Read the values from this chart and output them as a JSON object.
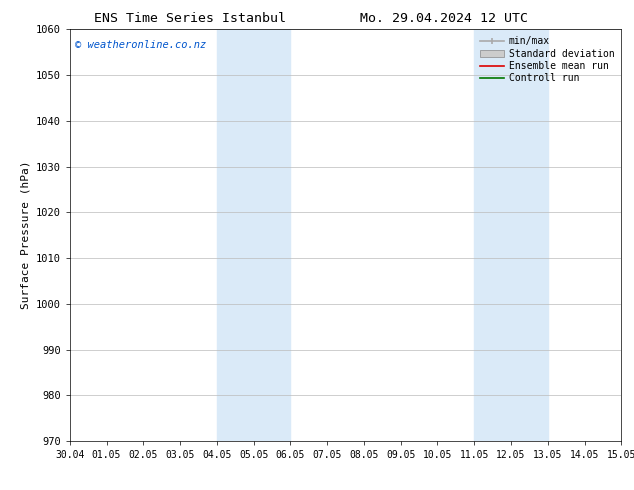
{
  "title_left": "ENS Time Series Istanbul",
  "title_right": "Mo. 29.04.2024 12 UTC",
  "ylabel": "Surface Pressure (hPa)",
  "ylim": [
    970,
    1060
  ],
  "yticks": [
    970,
    980,
    990,
    1000,
    1010,
    1020,
    1030,
    1040,
    1050,
    1060
  ],
  "xtick_labels": [
    "30.04",
    "01.05",
    "02.05",
    "03.05",
    "04.05",
    "05.05",
    "06.05",
    "07.05",
    "08.05",
    "09.05",
    "10.05",
    "11.05",
    "12.05",
    "13.05",
    "14.05",
    "15.05"
  ],
  "shaded_regions": [
    {
      "xstart": 4,
      "xend": 6,
      "color": "#daeaf8"
    },
    {
      "xstart": 11,
      "xend": 13,
      "color": "#daeaf8"
    }
  ],
  "watermark": "© weatheronline.co.nz",
  "watermark_color": "#0055cc",
  "background_color": "#ffffff",
  "plot_bg_color": "#ffffff",
  "grid_color": "#bbbbbb",
  "title_fontsize": 9.5,
  "legend_entries": [
    {
      "label": "min/max",
      "color": "#aaaaaa",
      "lw": 1.2,
      "style": "errorbar"
    },
    {
      "label": "Standard deviation",
      "color": "#cccccc",
      "lw": 5,
      "style": "band"
    },
    {
      "label": "Ensemble mean run",
      "color": "#dd0000",
      "lw": 1.2,
      "style": "line"
    },
    {
      "label": "Controll run",
      "color": "#007700",
      "lw": 1.2,
      "style": "line"
    }
  ]
}
